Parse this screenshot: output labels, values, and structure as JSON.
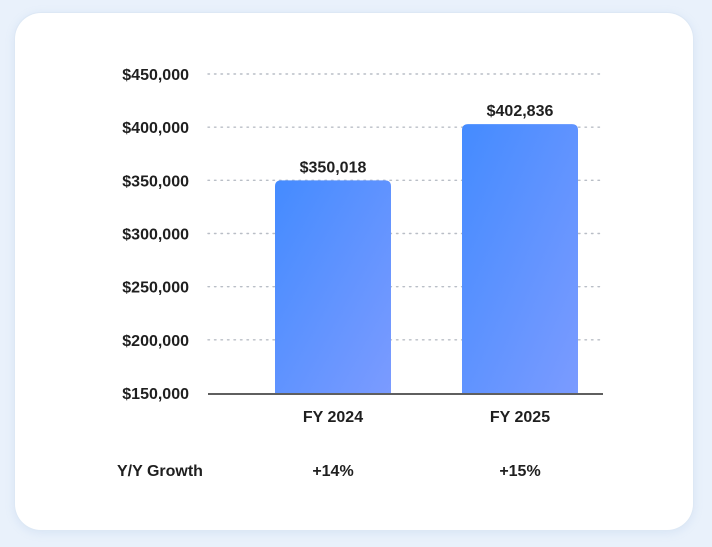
{
  "chart_data": {
    "type": "bar",
    "categories": [
      "FY 2024",
      "FY 2025"
    ],
    "values": [
      350018,
      402836
    ],
    "data_labels": [
      "$350,018",
      "$402,836"
    ],
    "ylim": [
      150000,
      450000
    ],
    "y_ticks": [
      450000,
      400000,
      350000,
      300000,
      250000,
      200000,
      150000
    ],
    "y_tick_labels": [
      "$450,000",
      "$400,000",
      "$350,000",
      "$300,000",
      "$250,000",
      "$200,000",
      "$150,000"
    ],
    "grid": "dotted-horizontal",
    "bar_color_start": "#448bff",
    "bar_color_end": "#7b9bff",
    "growth_row": {
      "label": "Y/Y Growth",
      "values": [
        "+14%",
        "+15%"
      ]
    }
  }
}
